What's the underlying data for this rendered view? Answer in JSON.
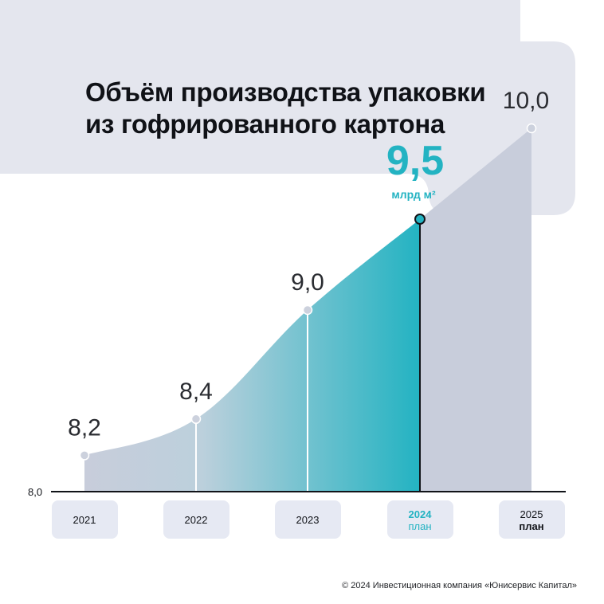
{
  "title": {
    "line1": "Объём производства упаковки",
    "line2": "из гофрированного картона"
  },
  "footer": "© 2024 Инвестиционная компания «Юнисервис Капитал»",
  "colors": {
    "header_bg": "#e4e6ee",
    "area_light": "#c8cddb",
    "accent": "#23b3c2",
    "marker_fill": "#ccd1dd",
    "category_box": "#e6e9f3"
  },
  "chart_data": {
    "type": "area",
    "ylabel": "",
    "xlabel": "",
    "ylim": [
      8.0,
      10.0
    ],
    "y_baseline_label": "8,0",
    "categories": [
      {
        "year": "2021",
        "sub": ""
      },
      {
        "year": "2022",
        "sub": ""
      },
      {
        "year": "2023",
        "sub": ""
      },
      {
        "year": "2024",
        "sub": "план"
      },
      {
        "year": "2025",
        "sub": "план"
      }
    ],
    "values": [
      8.2,
      8.4,
      9.0,
      9.5,
      10.0
    ],
    "value_labels": [
      "8,2",
      "8,4",
      "9,0",
      "9,5",
      "10,0"
    ],
    "highlight_index": 3,
    "highlight_unit": "млрд м²"
  }
}
